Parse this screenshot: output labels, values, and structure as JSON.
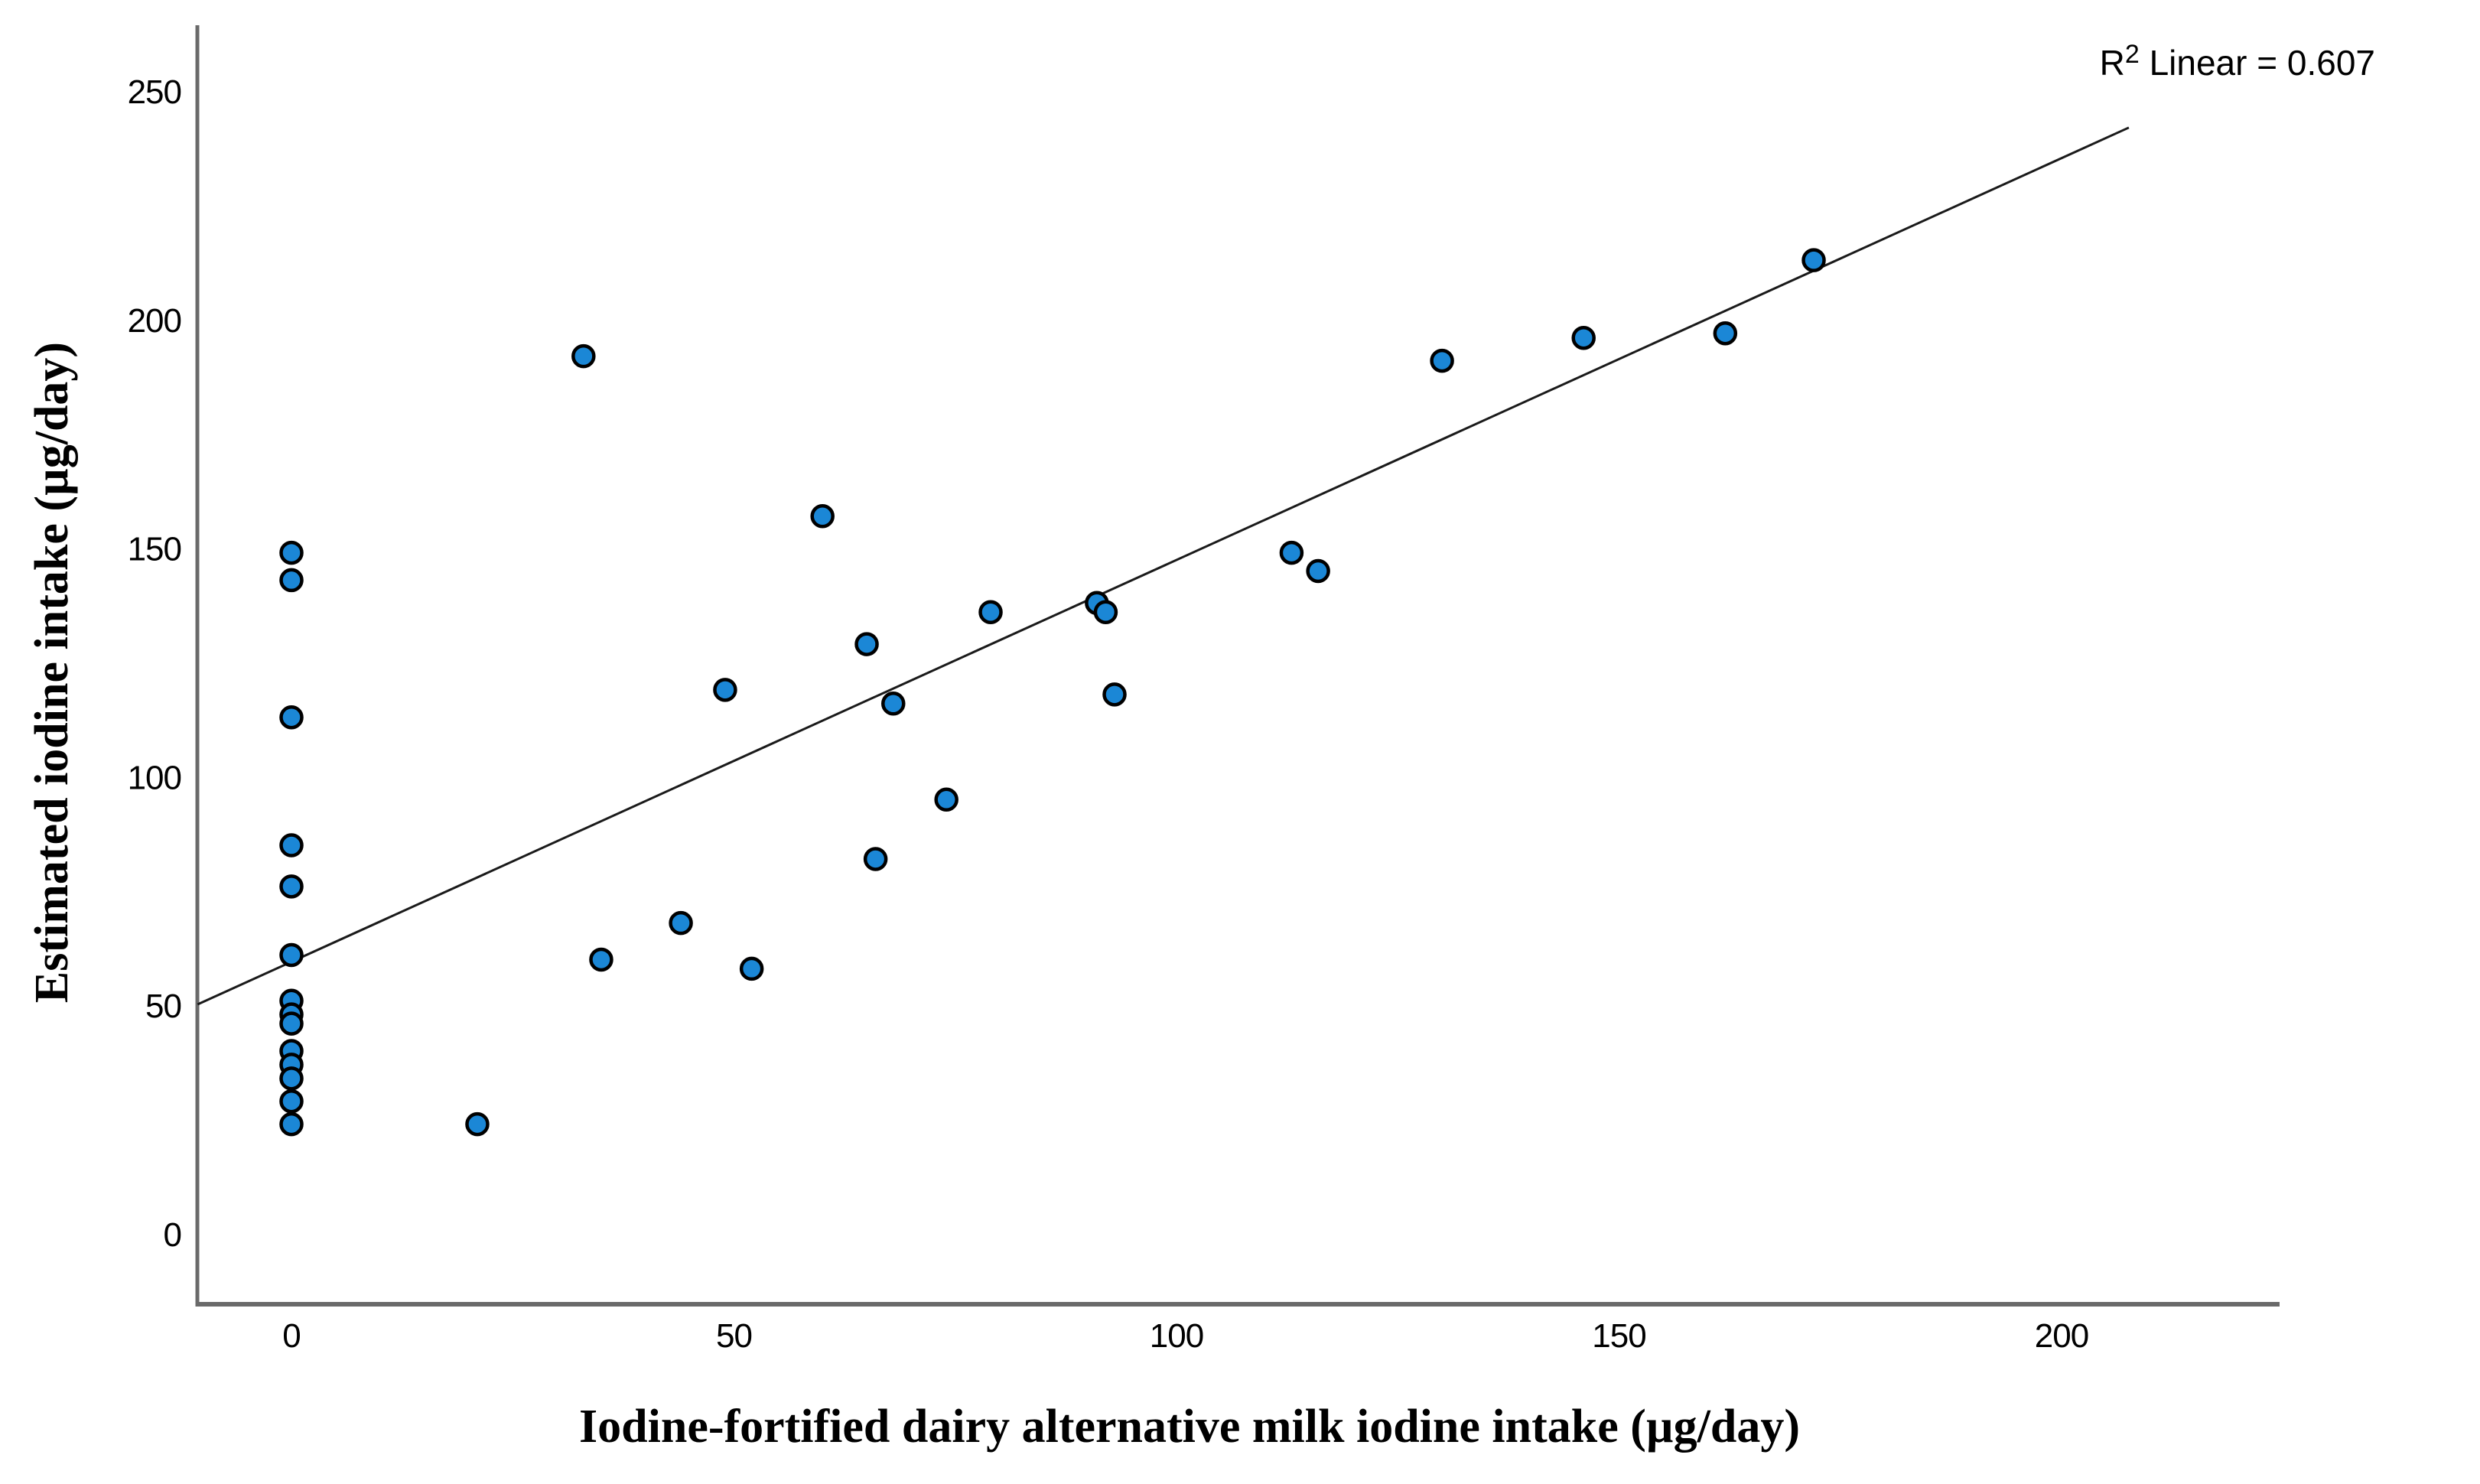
{
  "chart_data": {
    "type": "scatter",
    "title": "",
    "xlabel": "Iodine-fortified dairy alternative milk iodine intake (µg/day)",
    "ylabel": "Estimated iodine intake (µg/day)",
    "r2_label": {
      "base": "R",
      "sup": "2",
      "rest": " Linear = 0.607"
    },
    "r_squared": 0.607,
    "x_ticks": [
      0,
      50,
      100,
      150,
      200
    ],
    "y_ticks": [
      0,
      50,
      100,
      150,
      200,
      250
    ],
    "xlim": [
      -10.6,
      224.6
    ],
    "ylim": [
      -15.4,
      264.4
    ],
    "grid": false,
    "legend": false,
    "points": [
      [
        0,
        149
      ],
      [
        0,
        143
      ],
      [
        0,
        113
      ],
      [
        0,
        85
      ],
      [
        0,
        76
      ],
      [
        0,
        61
      ],
      [
        0,
        51
      ],
      [
        0,
        48
      ],
      [
        0,
        46
      ],
      [
        0,
        40
      ],
      [
        0,
        37
      ],
      [
        0,
        34
      ],
      [
        0,
        29
      ],
      [
        0,
        24
      ],
      [
        21,
        24
      ],
      [
        33,
        192
      ],
      [
        35,
        60
      ],
      [
        44,
        68
      ],
      [
        49,
        119
      ],
      [
        52,
        58
      ],
      [
        60,
        157
      ],
      [
        65,
        129
      ],
      [
        66,
        82
      ],
      [
        68,
        116
      ],
      [
        74,
        95
      ],
      [
        79,
        136
      ],
      [
        91,
        138
      ],
      [
        92,
        136
      ],
      [
        93,
        118
      ],
      [
        113,
        149
      ],
      [
        116,
        145
      ],
      [
        130,
        191
      ],
      [
        146,
        196
      ],
      [
        162,
        197
      ],
      [
        172,
        213
      ]
    ],
    "regression_line": {
      "r2": 0.607,
      "x1": -10.6,
      "y1": 50.2,
      "x2": 207.6,
      "y2": 242.0
    }
  },
  "colors": {
    "background": "#ffffff",
    "point_fill": "#1b87d6",
    "point_stroke": "#000000",
    "axis": "#6a6a6a",
    "regression_line": "#1a1a1a",
    "text": "#000000"
  }
}
